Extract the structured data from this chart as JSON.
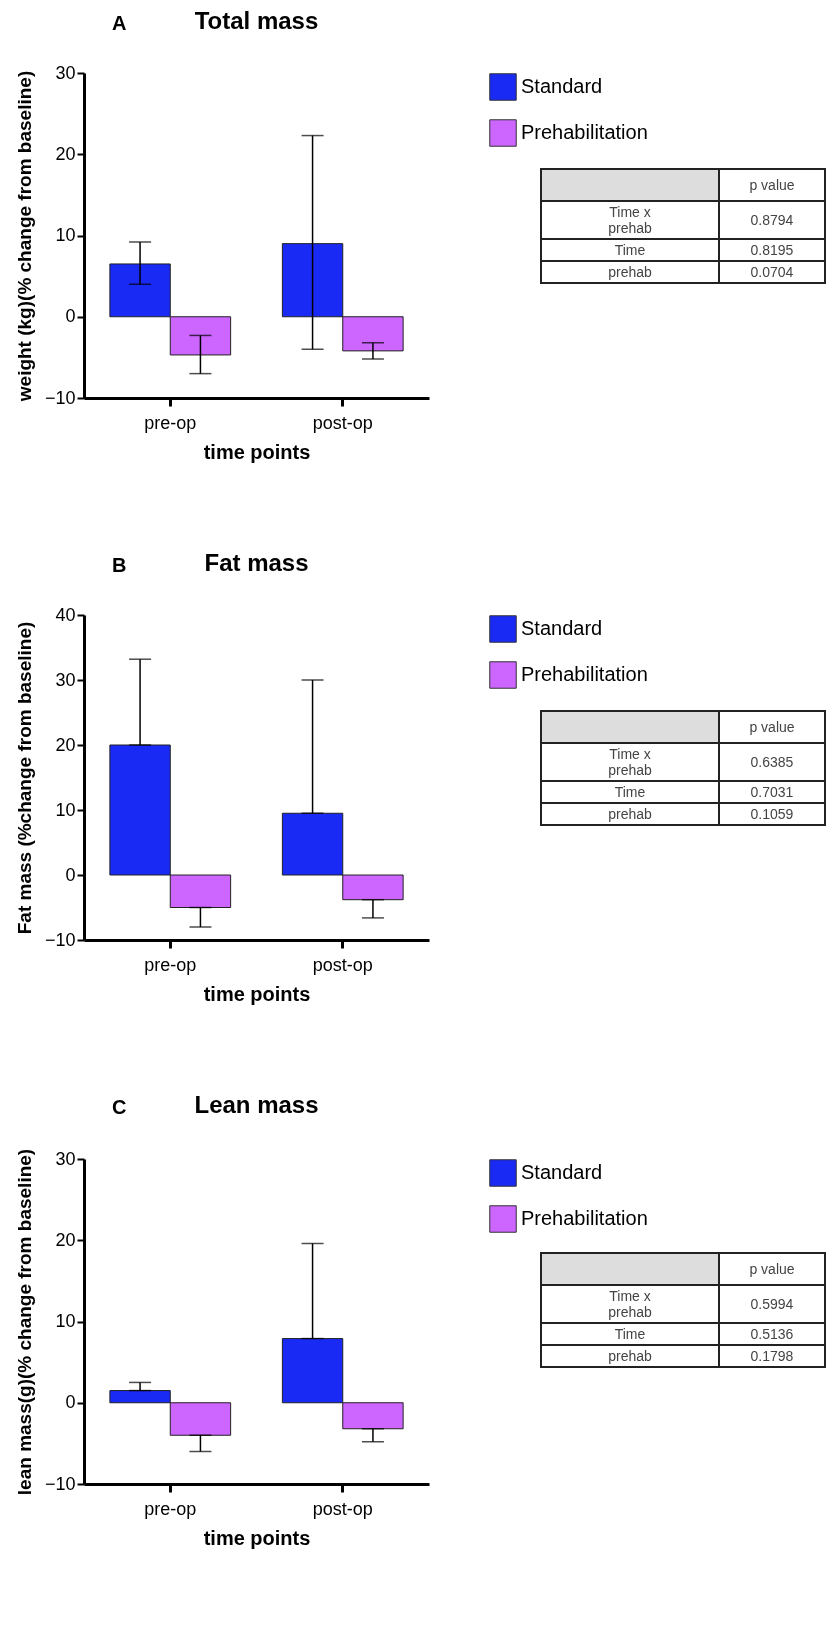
{
  "chart_data": [
    {
      "type": "bar",
      "title": "Total mass",
      "xlabel": "time points",
      "ylabel": "weight (kg)(% change from baseline)",
      "categories": [
        "pre-op",
        "post-op"
      ],
      "ylim": [
        -10,
        30
      ],
      "yticks": [
        -10,
        0,
        10,
        20,
        30
      ],
      "grid": false,
      "legend": "top right",
      "series": [
        {
          "name": "Standard",
          "color": "#1a2af5",
          "values": [
            6.5,
            9
          ],
          "errors": [
            [
              4,
              9.2
            ],
            [
              -4,
              22.3
            ]
          ]
        },
        {
          "name": "Prehabilitation",
          "color": "#cc66ff",
          "values": [
            -4.7,
            -4.2
          ],
          "errors": [
            [
              -7,
              -2.3
            ],
            [
              -5.2,
              -3.2
            ]
          ]
        }
      ],
      "annotations": [
        "A",
        "p value",
        "Time x prehab",
        "0.8794",
        "Time",
        "0.8195",
        "prehab",
        "0.0704"
      ]
    },
    {
      "type": "bar",
      "title": "Fat mass",
      "xlabel": "time points",
      "ylabel": "Fat mass (%change from baseline)",
      "categories": [
        "pre-op",
        "post-op"
      ],
      "ylim": [
        -10,
        40
      ],
      "yticks": [
        -10,
        0,
        10,
        20,
        30,
        40
      ],
      "grid": false,
      "legend": "top right",
      "series": [
        {
          "name": "Standard",
          "color": "#1a2af5",
          "values": [
            20,
            9.5
          ],
          "errors": [
            [
              20,
              33.2
            ],
            [
              9.5,
              30
            ]
          ]
        },
        {
          "name": "Prehabilitation",
          "color": "#cc66ff",
          "values": [
            -5,
            -3.8
          ],
          "errors": [
            [
              -8,
              -5
            ],
            [
              -6.6,
              -3.8
            ]
          ]
        }
      ],
      "annotations": [
        "B",
        "p value",
        "Time x prehab",
        "0.6385",
        "Time",
        "0.7031",
        "prehab",
        "0.1059"
      ]
    },
    {
      "type": "bar",
      "title": "Lean mass",
      "xlabel": "time points",
      "ylabel": "lean mass(g)(% change from baseline)",
      "categories": [
        "pre-op",
        "post-op"
      ],
      "ylim": [
        -10,
        30
      ],
      "yticks": [
        -10,
        0,
        10,
        20,
        30
      ],
      "grid": false,
      "legend": "top right",
      "series": [
        {
          "name": "Standard",
          "color": "#1a2af5",
          "values": [
            1.5,
            7.9
          ],
          "errors": [
            [
              1.5,
              2.5
            ],
            [
              7.9,
              19.6
            ]
          ]
        },
        {
          "name": "Prehabilitation",
          "color": "#cc66ff",
          "values": [
            -4,
            -3.2
          ],
          "errors": [
            [
              -6,
              -4
            ],
            [
              -4.8,
              -3.2
            ]
          ]
        }
      ],
      "annotations": [
        "C",
        "p value",
        "Time x prehab",
        "0.5994",
        "Time",
        "0.5136",
        "prehab",
        "0.1798"
      ]
    }
  ]
}
